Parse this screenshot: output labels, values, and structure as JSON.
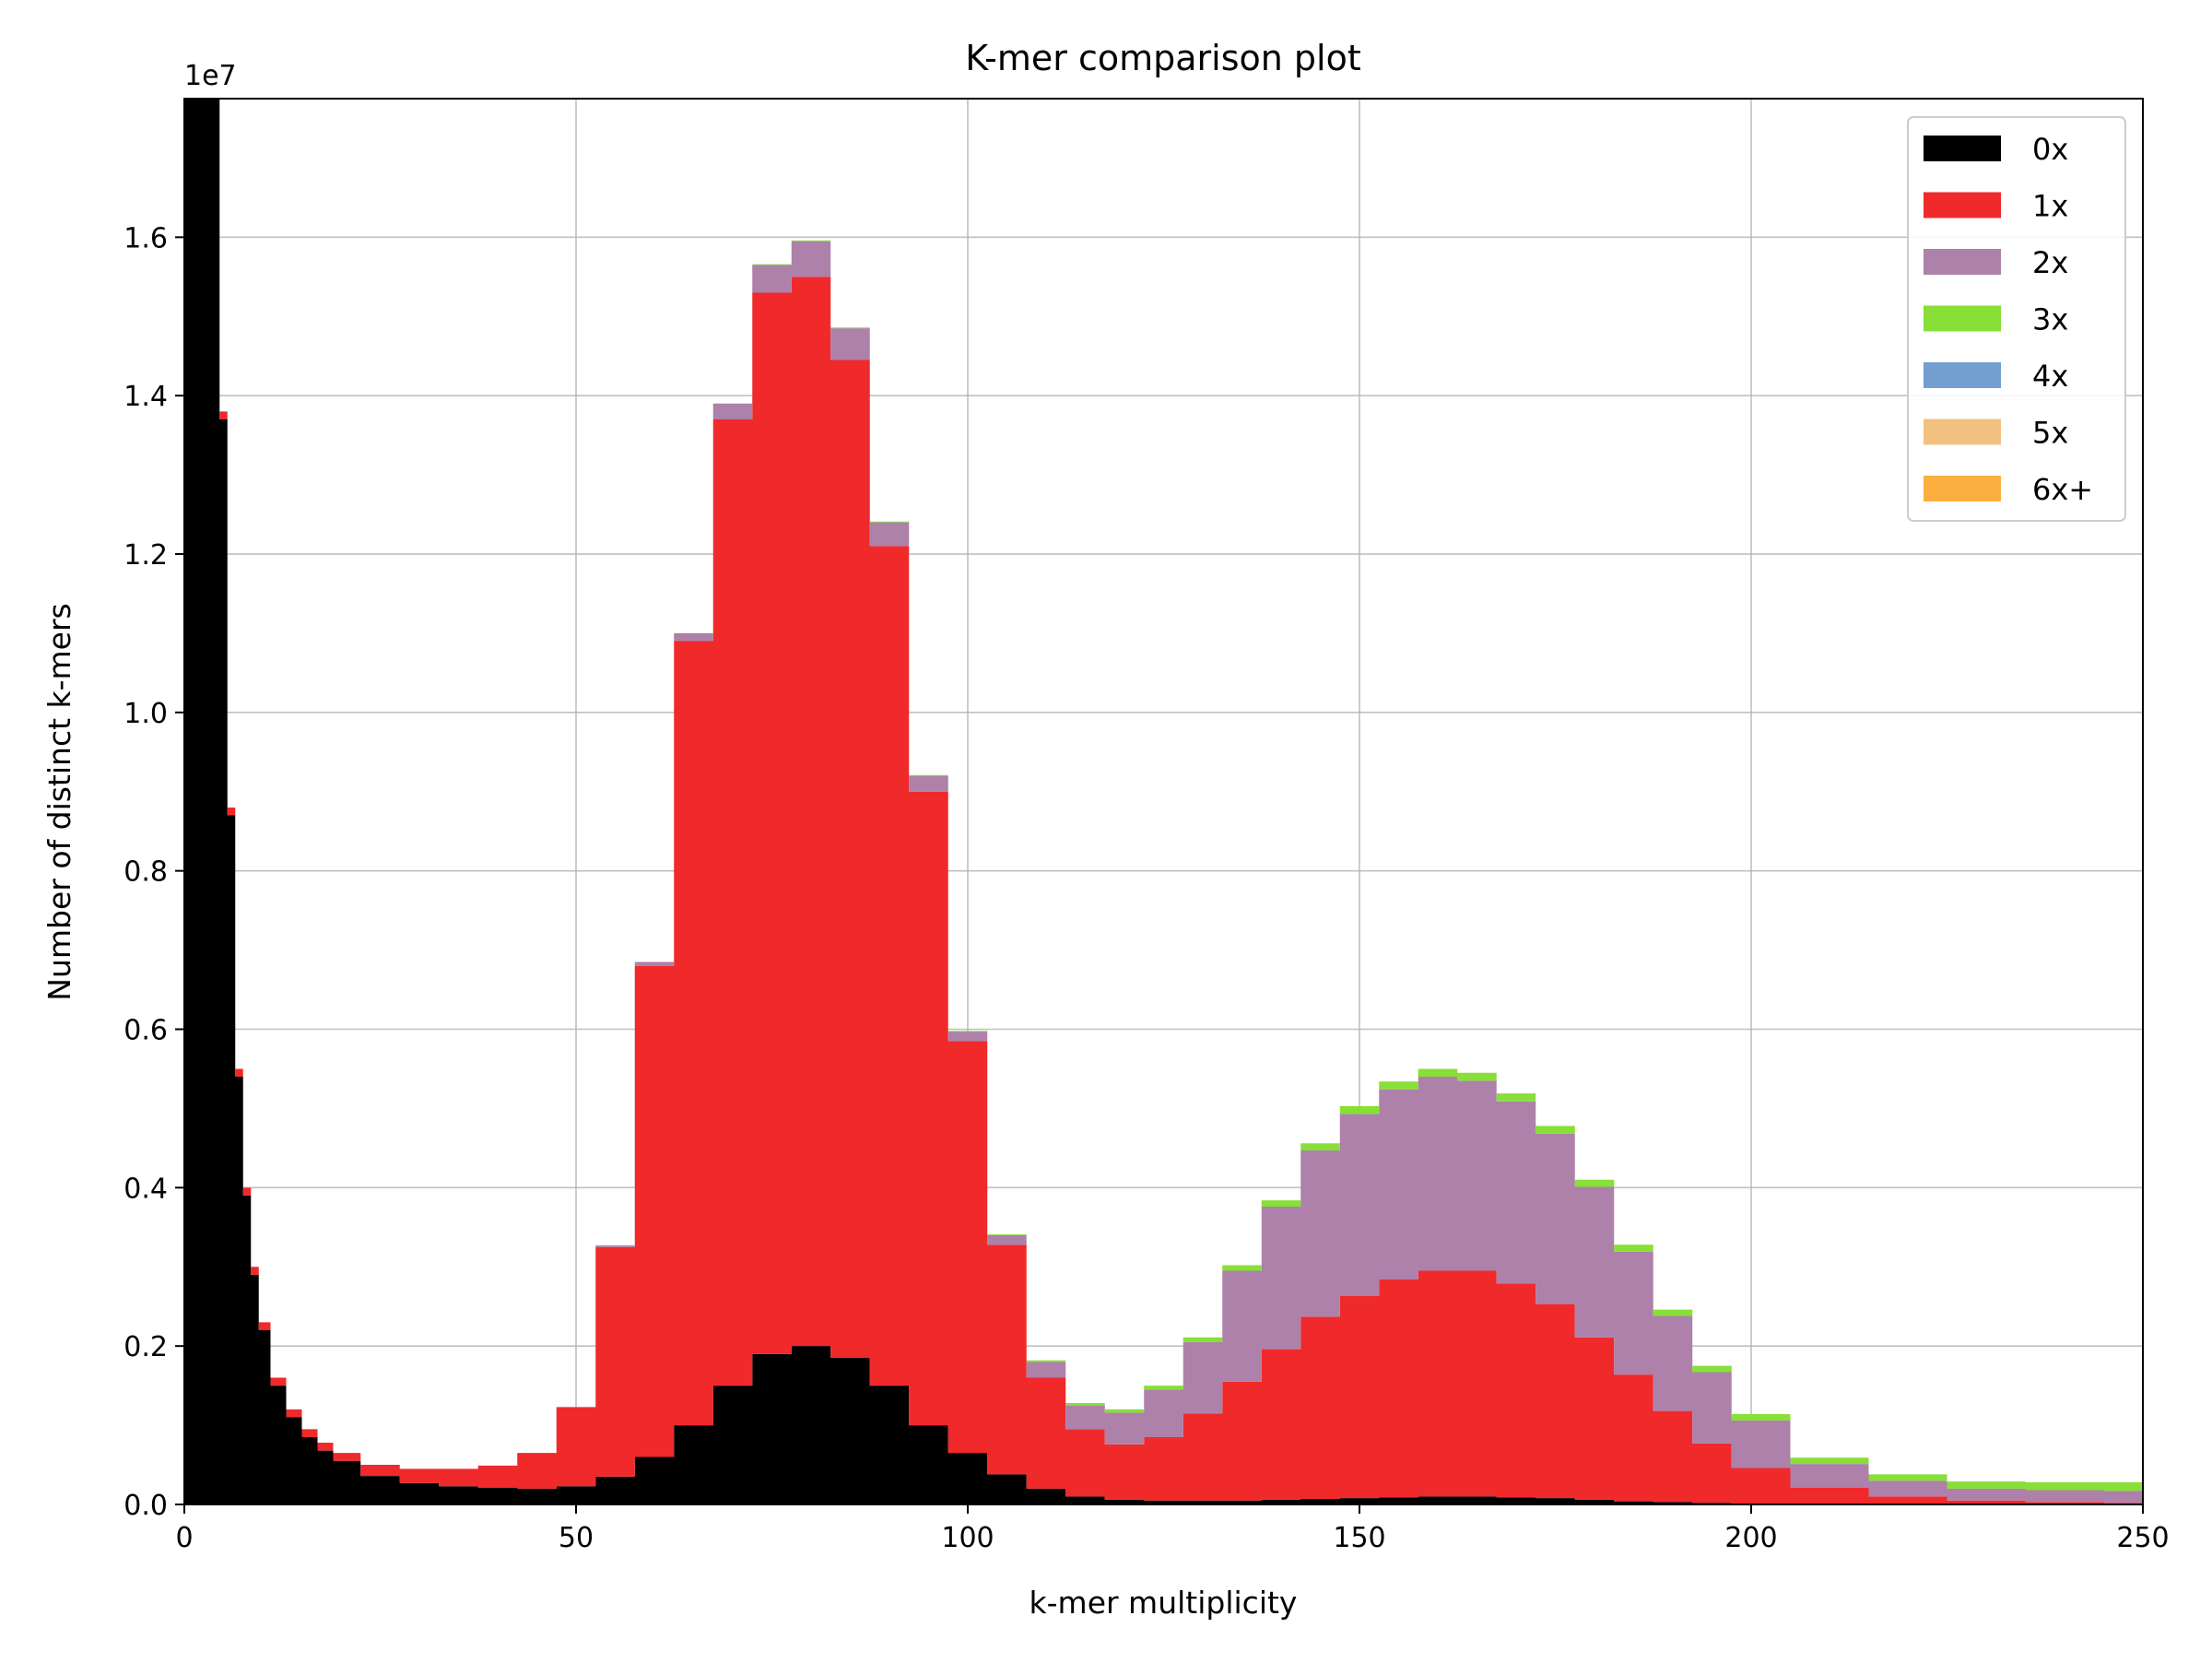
{
  "chart_data": {
    "type": "area",
    "title": "K-mer comparison plot",
    "xlabel": "k-mer multiplicity",
    "ylabel": "Number of distinct k-mers",
    "y_scale_label": "1e7",
    "xlim": [
      0,
      250
    ],
    "ylim": [
      0,
      1.775
    ],
    "x_ticks": [
      0,
      50,
      100,
      150,
      200,
      250
    ],
    "x_tick_labels": [
      "0",
      "50",
      "100",
      "150",
      "200",
      "250"
    ],
    "y_ticks": [
      0,
      0.2,
      0.4,
      0.6,
      0.8,
      1.0,
      1.2,
      1.4,
      1.6
    ],
    "y_tick_labels": [
      "0.0",
      "0.2",
      "0.4",
      "0.6",
      "0.8",
      "1.0",
      "1.2",
      "1.4",
      "1.6"
    ],
    "grid": true,
    "stacked": true,
    "legend_position": "top-right",
    "x": [
      1,
      2,
      3,
      4,
      5,
      6,
      7,
      8,
      9,
      10,
      12,
      14,
      16,
      18,
      20,
      25,
      30,
      35,
      40,
      45,
      50,
      55,
      60,
      65,
      70,
      75,
      80,
      85,
      90,
      95,
      100,
      105,
      110,
      115,
      120,
      125,
      130,
      135,
      140,
      145,
      150,
      155,
      160,
      165,
      170,
      175,
      180,
      185,
      190,
      195,
      200,
      210,
      220,
      230,
      240,
      250
    ],
    "series": [
      {
        "name": "0x",
        "color": "#000000",
        "values": [
          1.82,
          1.82,
          1.82,
          1.82,
          1.37,
          0.87,
          0.54,
          0.39,
          0.29,
          0.22,
          0.15,
          0.11,
          0.085,
          0.068,
          0.055,
          0.036,
          0.027,
          0.023,
          0.021,
          0.02,
          0.023,
          0.035,
          0.06,
          0.1,
          0.15,
          0.19,
          0.2,
          0.185,
          0.15,
          0.1,
          0.065,
          0.038,
          0.02,
          0.01,
          0.006,
          0.005,
          0.005,
          0.005,
          0.006,
          0.007,
          0.008,
          0.009,
          0.01,
          0.01,
          0.009,
          0.008,
          0.006,
          0.004,
          0.003,
          0.002,
          0.001,
          0.001,
          0,
          0,
          0,
          0
        ]
      },
      {
        "name": "1x",
        "color": "#f0292b",
        "values": [
          0,
          0,
          0,
          0,
          0.01,
          0.01,
          0.01,
          0.01,
          0.01,
          0.01,
          0.01,
          0.01,
          0.01,
          0.01,
          0.01,
          0.014,
          0.018,
          0.022,
          0.028,
          0.045,
          0.1,
          0.29,
          0.62,
          0.99,
          1.22,
          1.34,
          1.35,
          1.26,
          1.06,
          0.8,
          0.52,
          0.29,
          0.14,
          0.085,
          0.07,
          0.08,
          0.11,
          0.15,
          0.19,
          0.23,
          0.255,
          0.275,
          0.285,
          0.285,
          0.27,
          0.245,
          0.205,
          0.16,
          0.115,
          0.075,
          0.045,
          0.02,
          0.01,
          0.005,
          0.003,
          0.002
        ]
      },
      {
        "name": "2x",
        "color": "#ad81a9",
        "values": [
          0,
          0,
          0,
          0,
          0,
          0,
          0,
          0,
          0,
          0,
          0,
          0,
          0,
          0,
          0,
          0,
          0,
          0,
          0,
          0,
          0,
          0.002,
          0.005,
          0.01,
          0.02,
          0.035,
          0.045,
          0.04,
          0.03,
          0.02,
          0.012,
          0.012,
          0.02,
          0.03,
          0.04,
          0.06,
          0.09,
          0.14,
          0.18,
          0.21,
          0.23,
          0.24,
          0.245,
          0.24,
          0.23,
          0.215,
          0.19,
          0.155,
          0.12,
          0.09,
          0.06,
          0.03,
          0.02,
          0.015,
          0.015,
          0.015
        ]
      },
      {
        "name": "3x",
        "color": "#87df37",
        "values": [
          0,
          0,
          0,
          0,
          0,
          0,
          0,
          0,
          0,
          0,
          0,
          0,
          0,
          0,
          0,
          0,
          0,
          0,
          0,
          0,
          0,
          0,
          0,
          0,
          0,
          0.001,
          0.001,
          0.001,
          0.001,
          0.001,
          0.001,
          0.001,
          0.002,
          0.003,
          0.004,
          0.005,
          0.006,
          0.007,
          0.008,
          0.009,
          0.01,
          0.01,
          0.01,
          0.01,
          0.01,
          0.01,
          0.009,
          0.009,
          0.008,
          0.008,
          0.008,
          0.008,
          0.008,
          0.009,
          0.01,
          0.011
        ]
      },
      {
        "name": "4x",
        "color": "#729fcf",
        "values": [
          0,
          0,
          0,
          0,
          0,
          0,
          0,
          0,
          0,
          0,
          0,
          0,
          0,
          0,
          0,
          0,
          0,
          0,
          0,
          0,
          0,
          0,
          0,
          0,
          0,
          0,
          0,
          0,
          0,
          0,
          0,
          0,
          0,
          0,
          0,
          0,
          0,
          0,
          0,
          0,
          0,
          0,
          0,
          0,
          0,
          0,
          0,
          0,
          0,
          0,
          0,
          0,
          0,
          0,
          0,
          0
        ]
      },
      {
        "name": "5x",
        "color": "#f2c080",
        "values": [
          0,
          0,
          0,
          0,
          0,
          0,
          0,
          0,
          0,
          0,
          0,
          0,
          0,
          0,
          0,
          0,
          0,
          0,
          0,
          0,
          0,
          0,
          0,
          0,
          0,
          0,
          0,
          0,
          0,
          0,
          0,
          0,
          0,
          0,
          0,
          0,
          0,
          0,
          0,
          0,
          0,
          0,
          0,
          0,
          0,
          0,
          0,
          0,
          0,
          0,
          0,
          0,
          0,
          0,
          0,
          0
        ]
      },
      {
        "name": "6x+",
        "color": "#fcaf3e",
        "values": [
          0,
          0,
          0,
          0,
          0,
          0,
          0,
          0,
          0,
          0,
          0,
          0,
          0,
          0,
          0,
          0,
          0,
          0,
          0,
          0,
          0,
          0,
          0,
          0,
          0,
          0,
          0,
          0,
          0,
          0,
          0,
          0,
          0,
          0,
          0,
          0,
          0,
          0,
          0,
          0,
          0,
          0,
          0,
          0,
          0,
          0,
          0,
          0,
          0,
          0,
          0,
          0,
          0,
          0,
          0,
          0
        ]
      }
    ]
  }
}
